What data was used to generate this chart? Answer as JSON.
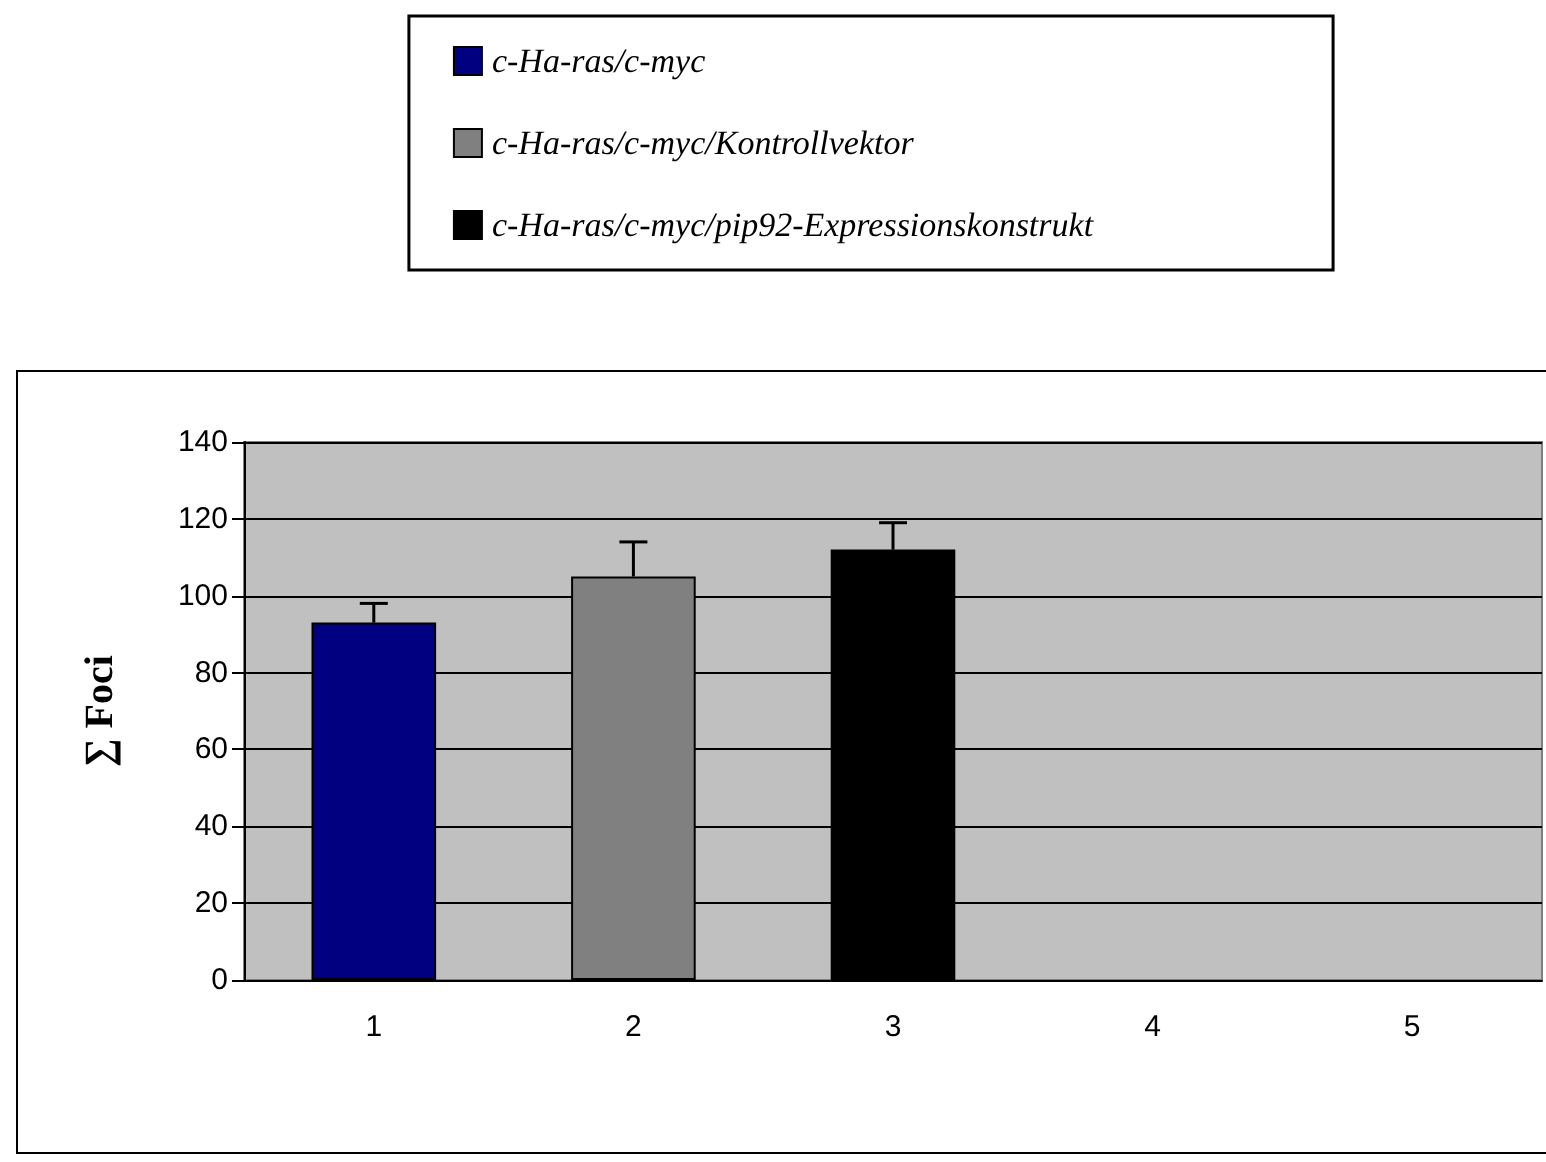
{
  "chart_data": {
    "type": "bar",
    "ylabel": "∑ Foci",
    "categories": [
      "1",
      "2",
      "3",
      "4",
      "5"
    ],
    "series": [
      {
        "name": "c-Ha-ras/c-myc",
        "color": "#000080",
        "values": [
          93,
          null,
          null,
          null,
          null
        ],
        "errors": [
          [
            93,
            98
          ],
          null,
          null,
          null,
          null
        ]
      },
      {
        "name": "c-Ha-ras/c-myc/Kontrollvektor",
        "color": "#808080",
        "values": [
          null,
          105,
          null,
          null,
          null
        ],
        "errors": [
          null,
          [
            105,
            114
          ],
          null,
          null,
          null
        ]
      },
      {
        "name": "c-Ha-ras/c-myc/pip92-Expressionskonstrukt",
        "color": "#000000",
        "values": [
          null,
          null,
          112,
          null,
          null
        ],
        "errors": [
          null,
          null,
          [
            112,
            119
          ],
          null,
          null
        ]
      }
    ],
    "ylim": [
      0,
      140
    ],
    "yticks": [
      0,
      20,
      40,
      60,
      80,
      100,
      120,
      140
    ],
    "grid": "y",
    "legend": "top"
  }
}
